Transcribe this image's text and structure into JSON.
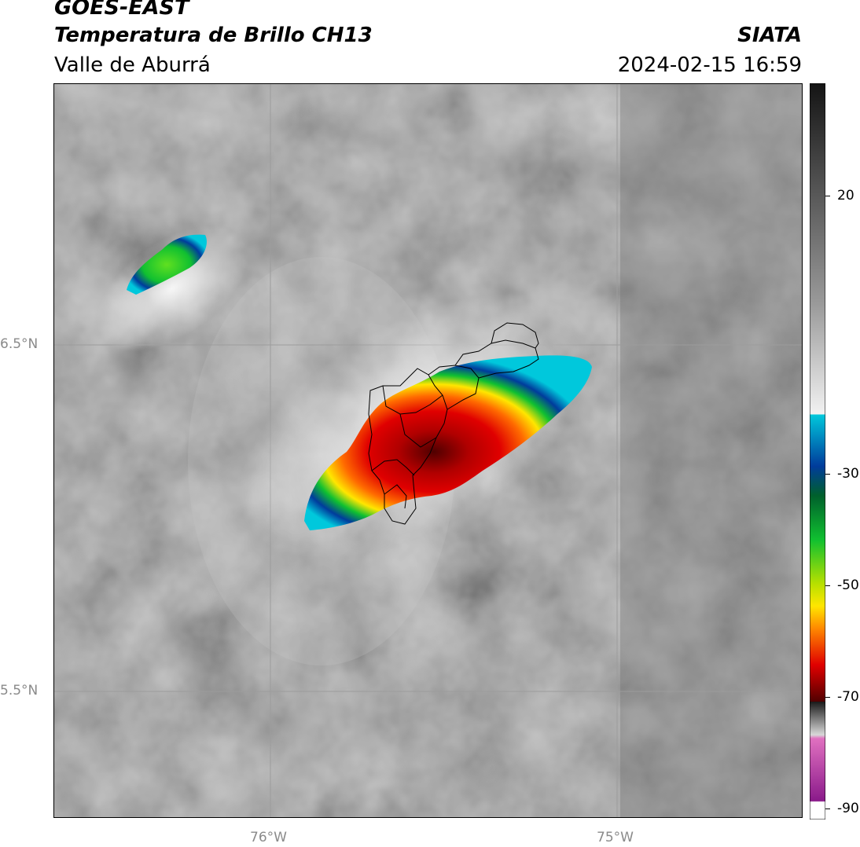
{
  "header": {
    "satellite": "GOES-EAST",
    "product": "Temperatura de Brillo CH13",
    "region": "Valle de Aburrá",
    "organization": "SIATA",
    "timestamp": "2024-02-15 16:59"
  },
  "map": {
    "lat_labels": [
      "6.5°N",
      "5.5°N"
    ],
    "lon_labels": [
      "76°W",
      "75°W"
    ],
    "background_color": "#8e8e8e",
    "gridline_color": "#9c9c9c",
    "boundary_color": "#000000"
  },
  "colorbar": {
    "tick_labels": [
      "20",
      "-30",
      "-50",
      "-70",
      "-90"
    ],
    "palette": {
      "gray_dark": "#1a1a1a",
      "gray_light": "#f2f2f2",
      "cyan": "#00c8dc",
      "blue": "#003c9c",
      "green": "#10c030",
      "yellow": "#ffe600",
      "orange": "#ff8a00",
      "red": "#e00000",
      "dark_red": "#500000",
      "magenta": "#e070c0",
      "purple": "#8a1a8a"
    }
  }
}
